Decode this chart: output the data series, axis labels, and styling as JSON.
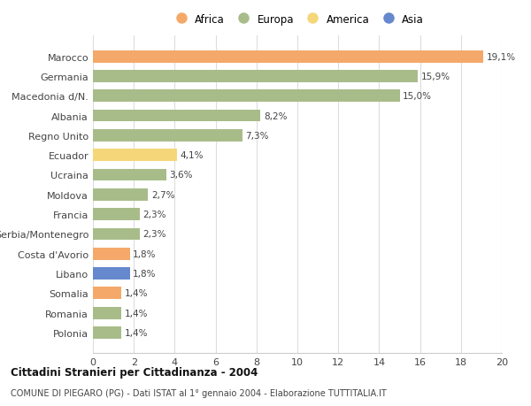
{
  "categories": [
    "Marocco",
    "Germania",
    "Macedonia d/N.",
    "Albania",
    "Regno Unito",
    "Ecuador",
    "Ucraina",
    "Moldova",
    "Francia",
    "Serbia/Montenegro",
    "Costa d'Avorio",
    "Libano",
    "Somalia",
    "Romania",
    "Polonia"
  ],
  "values": [
    19.1,
    15.9,
    15.0,
    8.2,
    7.3,
    4.1,
    3.6,
    2.7,
    2.3,
    2.3,
    1.8,
    1.8,
    1.4,
    1.4,
    1.4
  ],
  "labels": [
    "19,1%",
    "15,9%",
    "15,0%",
    "8,2%",
    "7,3%",
    "4,1%",
    "3,6%",
    "2,7%",
    "2,3%",
    "2,3%",
    "1,8%",
    "1,8%",
    "1,4%",
    "1,4%",
    "1,4%"
  ],
  "continents": [
    "Africa",
    "Europa",
    "Europa",
    "Europa",
    "Europa",
    "America",
    "Europa",
    "Europa",
    "Europa",
    "Europa",
    "Africa",
    "Asia",
    "Africa",
    "Europa",
    "Europa"
  ],
  "colors": {
    "Africa": "#F4A96A",
    "Europa": "#A8BC8A",
    "America": "#F5D77A",
    "Asia": "#6688CC"
  },
  "legend_order": [
    "Africa",
    "Europa",
    "America",
    "Asia"
  ],
  "xlim": [
    0,
    20
  ],
  "xticks": [
    0,
    2,
    4,
    6,
    8,
    10,
    12,
    14,
    16,
    18,
    20
  ],
  "title": "Cittadini Stranieri per Cittadinanza - 2004",
  "subtitle": "COMUNE DI PIEGARO (PG) - Dati ISTAT al 1° gennaio 2004 - Elaborazione TUTTITALIA.IT",
  "background_color": "#FFFFFF",
  "grid_color": "#DDDDDD"
}
